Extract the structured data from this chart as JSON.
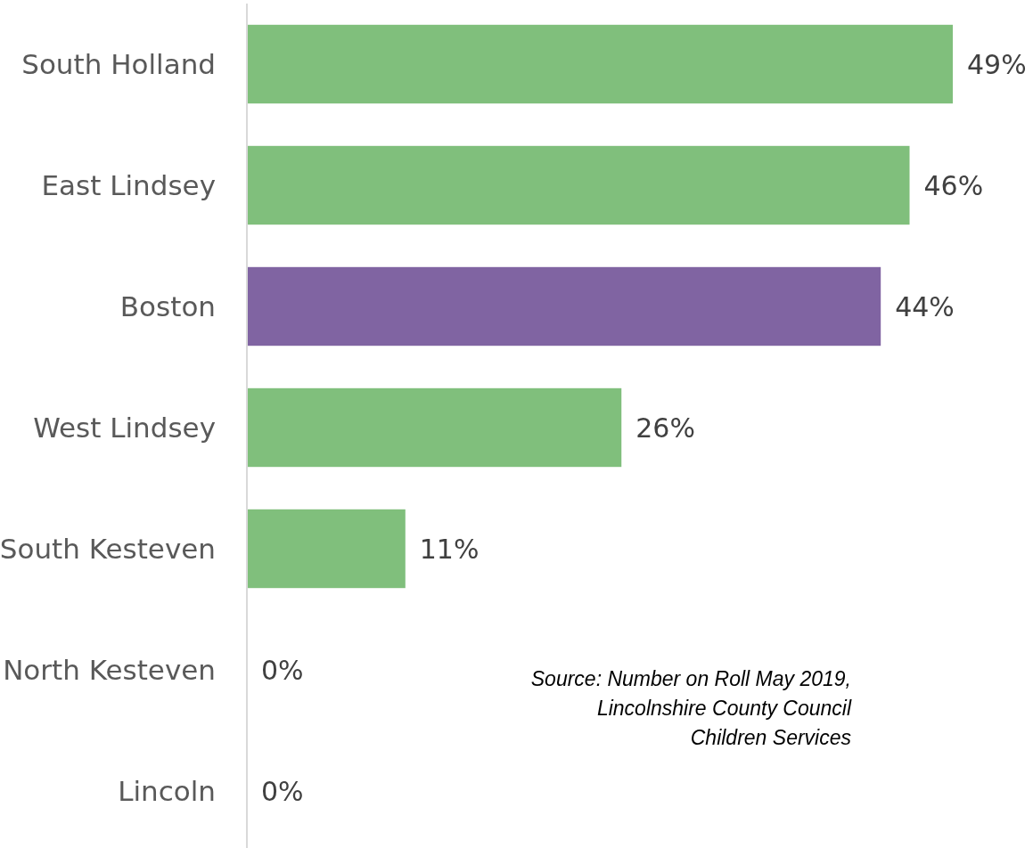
{
  "chart_data": {
    "type": "bar",
    "orientation": "horizontal",
    "categories": [
      "South Holland",
      "East Lindsey",
      "Boston",
      "West Lindsey",
      "South Kesteven",
      "North Kesteven",
      "Lincoln"
    ],
    "values": [
      49,
      46,
      44,
      26,
      11,
      0,
      0
    ],
    "colors": [
      "#80bf7c",
      "#80bf7c",
      "#8064a2",
      "#80bf7c",
      "#80bf7c",
      "#80bf7c",
      "#80bf7c"
    ],
    "value_labels": [
      "49%",
      "46%",
      "44%",
      "26%",
      "11%",
      "0%",
      "0%"
    ],
    "annotations": [
      "Source: Number on Roll May 2019,\nLincolnshire County Council\nChildren Services"
    ]
  }
}
